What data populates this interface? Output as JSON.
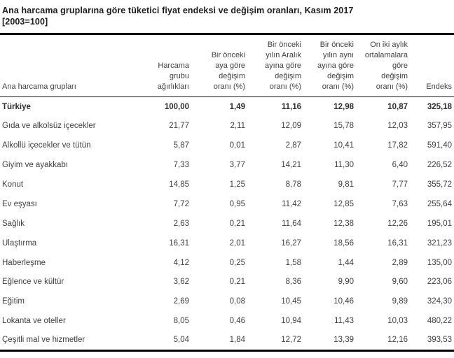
{
  "title": {
    "line1": "Ana harcama gruplarına göre tüketici fiyat endeksi ve değişim oranları, Kasım 2017",
    "line2": "[2003=100]"
  },
  "colors": {
    "rule": "#000000",
    "body_text": "#404040",
    "title_text": "#1c1c1c",
    "background": "#ffffff"
  },
  "table": {
    "columns": [
      {
        "label": "Ana harcama grupları"
      },
      {
        "label": "Harcama\ngrubu\nağırlıkları"
      },
      {
        "label": "Bir önceki\naya göre\ndeğişim\noranı (%)"
      },
      {
        "label": "Bir önceki\nyılın Aralık\nayına göre\ndeğişim\noranı (%)"
      },
      {
        "label": "Bir önceki\nyılın aynı\nayına göre\ndeğişim\noranı (%)"
      },
      {
        "label": "On iki aylık\nortalamalara\ngöre\ndeğişim\noranı (%)"
      },
      {
        "label": "Endeks"
      }
    ],
    "rows": [
      {
        "group": "Türkiye",
        "bold": true,
        "values": [
          "100,00",
          "1,49",
          "11,16",
          "12,98",
          "10,87",
          "325,18"
        ]
      },
      {
        "group": "Gıda ve alkolsüz içecekler",
        "bold": false,
        "values": [
          "21,77",
          "2,11",
          "12,09",
          "15,78",
          "12,03",
          "357,95"
        ]
      },
      {
        "group": "Alkollü içecekler ve tütün",
        "bold": false,
        "values": [
          "5,87",
          "0,01",
          "2,87",
          "10,41",
          "17,82",
          "591,40"
        ]
      },
      {
        "group": "Giyim ve ayakkabı",
        "bold": false,
        "values": [
          "7,33",
          "3,77",
          "14,21",
          "11,30",
          "6,40",
          "226,52"
        ]
      },
      {
        "group": "Konut",
        "bold": false,
        "values": [
          "14,85",
          "1,25",
          "8,78",
          "9,81",
          "7,77",
          "355,72"
        ]
      },
      {
        "group": "Ev eşyası",
        "bold": false,
        "values": [
          "7,72",
          "0,95",
          "11,42",
          "12,85",
          "7,63",
          "255,64"
        ]
      },
      {
        "group": "Sağlık",
        "bold": false,
        "values": [
          "2,63",
          "0,21",
          "11,64",
          "12,38",
          "12,26",
          "195,01"
        ]
      },
      {
        "group": "Ulaştırma",
        "bold": false,
        "values": [
          "16,31",
          "2,01",
          "16,27",
          "18,56",
          "16,31",
          "321,23"
        ]
      },
      {
        "group": "Haberleşme",
        "bold": false,
        "values": [
          "4,12",
          "0,25",
          "1,58",
          "1,44",
          "2,89",
          "135,00"
        ]
      },
      {
        "group": "Eğlence ve kültür",
        "bold": false,
        "values": [
          "3,62",
          "0,21",
          "8,36",
          "9,90",
          "9,60",
          "223,06"
        ]
      },
      {
        "group": "Eğitim",
        "bold": false,
        "values": [
          "2,69",
          "0,08",
          "10,45",
          "10,46",
          "9,89",
          "324,30"
        ]
      },
      {
        "group": "Lokanta ve oteller",
        "bold": false,
        "values": [
          "8,05",
          "0,46",
          "10,94",
          "11,43",
          "10,03",
          "480,22"
        ]
      },
      {
        "group": "Çeşitli mal ve hizmetler",
        "bold": false,
        "values": [
          "5,04",
          "1,84",
          "12,72",
          "13,39",
          "12,16",
          "393,53"
        ]
      }
    ]
  }
}
